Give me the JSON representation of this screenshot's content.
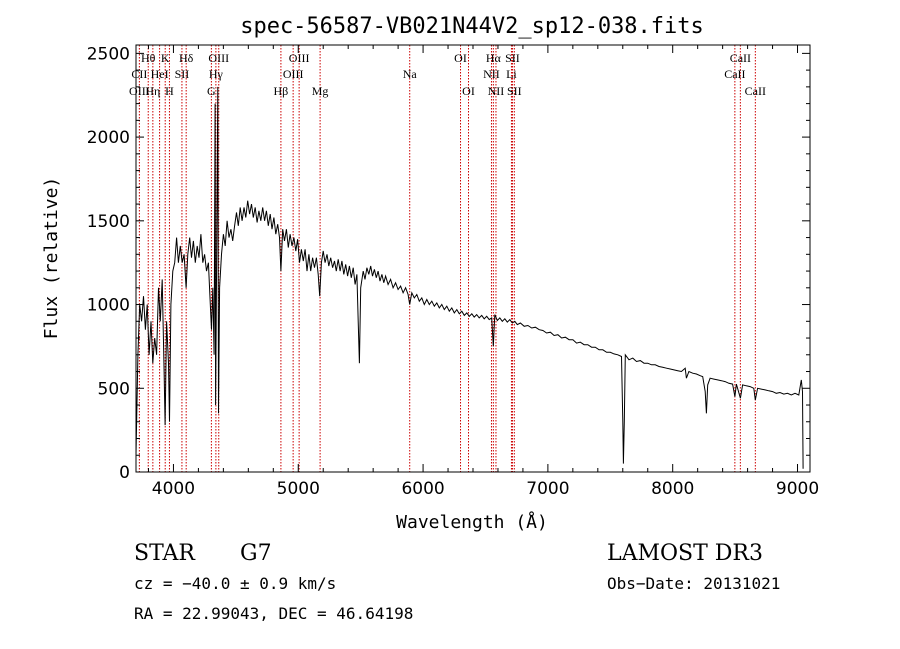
{
  "chart_data": {
    "type": "line",
    "title": "spec-56587-VB021N44V2_sp12-038.fits",
    "xlabel": "Wavelength (Å)",
    "ylabel": "Flux (relative)",
    "xlim": [
      3700,
      9100
    ],
    "ylim": [
      0,
      2550
    ],
    "xticks": [
      4000,
      5000,
      6000,
      7000,
      8000,
      9000
    ],
    "yticks": [
      0,
      500,
      1000,
      1500,
      2000,
      2500
    ],
    "spectrum": [
      [
        3700,
        100
      ],
      [
        3715,
        700
      ],
      [
        3730,
        1000
      ],
      [
        3745,
        900
      ],
      [
        3760,
        1050
      ],
      [
        3775,
        850
      ],
      [
        3790,
        1000
      ],
      [
        3805,
        700
      ],
      [
        3820,
        900
      ],
      [
        3835,
        650
      ],
      [
        3850,
        800
      ],
      [
        3865,
        700
      ],
      [
        3880,
        1100
      ],
      [
        3895,
        900
      ],
      [
        3910,
        1150
      ],
      [
        3925,
        600
      ],
      [
        3933,
        280
      ],
      [
        3945,
        900
      ],
      [
        3960,
        650
      ],
      [
        3968,
        300
      ],
      [
        3980,
        1000
      ],
      [
        3995,
        1200
      ],
      [
        4010,
        1250
      ],
      [
        4025,
        1400
      ],
      [
        4040,
        1250
      ],
      [
        4055,
        1350
      ],
      [
        4070,
        1250
      ],
      [
        4085,
        1300
      ],
      [
        4101,
        1100
      ],
      [
        4115,
        1300
      ],
      [
        4130,
        1400
      ],
      [
        4145,
        1280
      ],
      [
        4160,
        1380
      ],
      [
        4175,
        1250
      ],
      [
        4190,
        1350
      ],
      [
        4205,
        1280
      ],
      [
        4220,
        1420
      ],
      [
        4235,
        1250
      ],
      [
        4250,
        1300
      ],
      [
        4265,
        1200
      ],
      [
        4280,
        1250
      ],
      [
        4295,
        1000
      ],
      [
        4305,
        850
      ],
      [
        4315,
        1100
      ],
      [
        4326,
        700
      ],
      [
        4334,
        2200
      ],
      [
        4338,
        400
      ],
      [
        4345,
        1150
      ],
      [
        4355,
        2300
      ],
      [
        4361,
        350
      ],
      [
        4370,
        1100
      ],
      [
        4385,
        1300
      ],
      [
        4400,
        1420
      ],
      [
        4415,
        1350
      ],
      [
        4430,
        1500
      ],
      [
        4445,
        1400
      ],
      [
        4460,
        1450
      ],
      [
        4475,
        1380
      ],
      [
        4490,
        1470
      ],
      [
        4505,
        1550
      ],
      [
        4520,
        1470
      ],
      [
        4535,
        1580
      ],
      [
        4550,
        1500
      ],
      [
        4565,
        1580
      ],
      [
        4580,
        1520
      ],
      [
        4595,
        1620
      ],
      [
        4610,
        1540
      ],
      [
        4625,
        1600
      ],
      [
        4640,
        1520
      ],
      [
        4655,
        1580
      ],
      [
        4670,
        1490
      ],
      [
        4685,
        1560
      ],
      [
        4700,
        1500
      ],
      [
        4715,
        1580
      ],
      [
        4730,
        1500
      ],
      [
        4745,
        1560
      ],
      [
        4760,
        1470
      ],
      [
        4775,
        1540
      ],
      [
        4790,
        1450
      ],
      [
        4805,
        1520
      ],
      [
        4820,
        1420
      ],
      [
        4835,
        1480
      ],
      [
        4850,
        1400
      ],
      [
        4861,
        1200
      ],
      [
        4875,
        1450
      ],
      [
        4890,
        1380
      ],
      [
        4905,
        1450
      ],
      [
        4920,
        1340
      ],
      [
        4935,
        1420
      ],
      [
        4950,
        1350
      ],
      [
        4965,
        1400
      ],
      [
        4980,
        1320
      ],
      [
        4995,
        1390
      ],
      [
        5010,
        1250
      ],
      [
        5025,
        1330
      ],
      [
        5040,
        1260
      ],
      [
        5055,
        1330
      ],
      [
        5070,
        1200
      ],
      [
        5085,
        1300
      ],
      [
        5100,
        1200
      ],
      [
        5115,
        1280
      ],
      [
        5130,
        1220
      ],
      [
        5145,
        1280
      ],
      [
        5160,
        1180
      ],
      [
        5172,
        1050
      ],
      [
        5185,
        1250
      ],
      [
        5200,
        1320
      ],
      [
        5215,
        1250
      ],
      [
        5230,
        1300
      ],
      [
        5245,
        1230
      ],
      [
        5260,
        1280
      ],
      [
        5275,
        1220
      ],
      [
        5290,
        1260
      ],
      [
        5305,
        1200
      ],
      [
        5320,
        1270
      ],
      [
        5335,
        1200
      ],
      [
        5350,
        1260
      ],
      [
        5365,
        1180
      ],
      [
        5380,
        1240
      ],
      [
        5395,
        1170
      ],
      [
        5410,
        1230
      ],
      [
        5425,
        1160
      ],
      [
        5440,
        1220
      ],
      [
        5455,
        1120
      ],
      [
        5470,
        1180
      ],
      [
        5480,
        900
      ],
      [
        5490,
        650
      ],
      [
        5500,
        1100
      ],
      [
        5520,
        1200
      ],
      [
        5535,
        1150
      ],
      [
        5550,
        1220
      ],
      [
        5565,
        1180
      ],
      [
        5580,
        1230
      ],
      [
        5595,
        1170
      ],
      [
        5610,
        1210
      ],
      [
        5625,
        1160
      ],
      [
        5640,
        1200
      ],
      [
        5655,
        1140
      ],
      [
        5670,
        1180
      ],
      [
        5685,
        1130
      ],
      [
        5700,
        1170
      ],
      [
        5720,
        1120
      ],
      [
        5740,
        1150
      ],
      [
        5760,
        1100
      ],
      [
        5780,
        1130
      ],
      [
        5800,
        1090
      ],
      [
        5820,
        1110
      ],
      [
        5840,
        1070
      ],
      [
        5860,
        1100
      ],
      [
        5880,
        1060
      ],
      [
        5893,
        1000
      ],
      [
        5910,
        1070
      ],
      [
        5930,
        1040
      ],
      [
        5950,
        1060
      ],
      [
        5970,
        1020
      ],
      [
        5990,
        1040
      ],
      [
        6010,
        1000
      ],
      [
        6030,
        1030
      ],
      [
        6050,
        1000
      ],
      [
        6070,
        1020
      ],
      [
        6090,
        990
      ],
      [
        6110,
        1010
      ],
      [
        6130,
        980
      ],
      [
        6150,
        1000
      ],
      [
        6170,
        970
      ],
      [
        6190,
        990
      ],
      [
        6210,
        960
      ],
      [
        6230,
        980
      ],
      [
        6250,
        950
      ],
      [
        6270,
        970
      ],
      [
        6290,
        945
      ],
      [
        6310,
        960
      ],
      [
        6330,
        935
      ],
      [
        6350,
        950
      ],
      [
        6370,
        930
      ],
      [
        6390,
        945
      ],
      [
        6410,
        925
      ],
      [
        6430,
        940
      ],
      [
        6450,
        920
      ],
      [
        6470,
        935
      ],
      [
        6490,
        915
      ],
      [
        6510,
        930
      ],
      [
        6530,
        910
      ],
      [
        6550,
        920
      ],
      [
        6563,
        750
      ],
      [
        6575,
        940
      ],
      [
        6595,
        905
      ],
      [
        6615,
        920
      ],
      [
        6635,
        900
      ],
      [
        6655,
        915
      ],
      [
        6675,
        895
      ],
      [
        6695,
        910
      ],
      [
        6715,
        890
      ],
      [
        6735,
        900
      ],
      [
        6755,
        880
      ],
      [
        6780,
        890
      ],
      [
        6810,
        870
      ],
      [
        6840,
        875
      ],
      [
        6870,
        860
      ],
      [
        6900,
        865
      ],
      [
        6930,
        850
      ],
      [
        6960,
        845
      ],
      [
        6990,
        830
      ],
      [
        7020,
        835
      ],
      [
        7050,
        815
      ],
      [
        7080,
        820
      ],
      [
        7110,
        800
      ],
      [
        7140,
        805
      ],
      [
        7170,
        790
      ],
      [
        7200,
        790
      ],
      [
        7230,
        770
      ],
      [
        7260,
        775
      ],
      [
        7290,
        760
      ],
      [
        7320,
        760
      ],
      [
        7350,
        745
      ],
      [
        7380,
        745
      ],
      [
        7410,
        730
      ],
      [
        7440,
        730
      ],
      [
        7470,
        715
      ],
      [
        7500,
        715
      ],
      [
        7530,
        705
      ],
      [
        7560,
        700
      ],
      [
        7590,
        690
      ],
      [
        7600,
        300
      ],
      [
        7605,
        50
      ],
      [
        7612,
        300
      ],
      [
        7620,
        700
      ],
      [
        7650,
        670
      ],
      [
        7680,
        680
      ],
      [
        7710,
        660
      ],
      [
        7740,
        665
      ],
      [
        7770,
        650
      ],
      [
        7800,
        650
      ],
      [
        7830,
        640
      ],
      [
        7860,
        640
      ],
      [
        7890,
        630
      ],
      [
        7920,
        625
      ],
      [
        7950,
        620
      ],
      [
        7980,
        615
      ],
      [
        8010,
        610
      ],
      [
        8040,
        605
      ],
      [
        8070,
        600
      ],
      [
        8100,
        620
      ],
      [
        8110,
        560
      ],
      [
        8130,
        600
      ],
      [
        8160,
        590
      ],
      [
        8190,
        585
      ],
      [
        8220,
        575
      ],
      [
        8240,
        570
      ],
      [
        8260,
        480
      ],
      [
        8270,
        350
      ],
      [
        8280,
        520
      ],
      [
        8300,
        560
      ],
      [
        8330,
        555
      ],
      [
        8360,
        550
      ],
      [
        8390,
        545
      ],
      [
        8420,
        540
      ],
      [
        8450,
        530
      ],
      [
        8480,
        525
      ],
      [
        8498,
        450
      ],
      [
        8510,
        525
      ],
      [
        8542,
        440
      ],
      [
        8560,
        520
      ],
      [
        8590,
        515
      ],
      [
        8620,
        510
      ],
      [
        8650,
        500
      ],
      [
        8662,
        430
      ],
      [
        8680,
        500
      ],
      [
        8710,
        495
      ],
      [
        8740,
        490
      ],
      [
        8770,
        485
      ],
      [
        8800,
        480
      ],
      [
        8830,
        470
      ],
      [
        8860,
        475
      ],
      [
        8890,
        465
      ],
      [
        8920,
        470
      ],
      [
        8950,
        460
      ],
      [
        8980,
        470
      ],
      [
        9010,
        460
      ],
      [
        9030,
        550
      ],
      [
        9040,
        480
      ],
      [
        9045,
        20
      ]
    ],
    "line_markers": [
      {
        "name": "Hθ",
        "wave": 3798,
        "row": 1
      },
      {
        "name": "CII",
        "wave": 3727,
        "row": 2
      },
      {
        "name": "OIII",
        "wave": 3727,
        "row": 3
      },
      {
        "name": "K",
        "wave": 3934,
        "row": 1
      },
      {
        "name": "HeI",
        "wave": 3889,
        "row": 2
      },
      {
        "name": "Hη",
        "wave": 3835,
        "row": 3
      },
      {
        "name": "SII",
        "wave": 4068,
        "row": 2
      },
      {
        "name": "H",
        "wave": 3968,
        "row": 3
      },
      {
        "name": "Hδ",
        "wave": 4102,
        "row": 1
      },
      {
        "name": "OIII",
        "wave": 4363,
        "row": 1
      },
      {
        "name": "Hγ",
        "wave": 4340,
        "row": 2
      },
      {
        "name": "G",
        "wave": 4304,
        "row": 3
      },
      {
        "name": "OIII",
        "wave": 5007,
        "row": 1
      },
      {
        "name": "OIII",
        "wave": 4959,
        "row": 2
      },
      {
        "name": "Hβ",
        "wave": 4861,
        "row": 3
      },
      {
        "name": "Mg",
        "wave": 5175,
        "row": 3
      },
      {
        "name": "Na",
        "wave": 5893,
        "row": 2
      },
      {
        "name": "OI",
        "wave": 6300,
        "row": 1
      },
      {
        "name": "OI",
        "wave": 6364,
        "row": 3
      },
      {
        "name": "Hα",
        "wave": 6563,
        "row": 1
      },
      {
        "name": "SII",
        "wave": 6716,
        "row": 1
      },
      {
        "name": "NII",
        "wave": 6548,
        "row": 2
      },
      {
        "name": "Li",
        "wave": 6708,
        "row": 2
      },
      {
        "name": "NII",
        "wave": 6584,
        "row": 3
      },
      {
        "name": "SII",
        "wave": 6731,
        "row": 3
      },
      {
        "name": "CaII",
        "wave": 8542,
        "row": 1
      },
      {
        "name": "CaII",
        "wave": 8498,
        "row": 2
      },
      {
        "name": "CaII",
        "wave": 8662,
        "row": 3
      }
    ]
  },
  "info": {
    "class": "STAR",
    "subclass": "G7",
    "survey": "LAMOST DR3",
    "cz": "cz = −40.0 ± 0.9 km/s",
    "obs_date": "Obs−Date: 20131021",
    "coords": "RA =  22.99043, DEC =  46.64198"
  },
  "colors": {
    "marker": "#cc0000",
    "spectrum": "#000000"
  }
}
